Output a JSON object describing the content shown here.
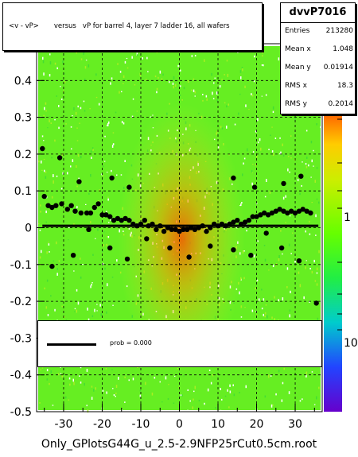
{
  "chart_data": {
    "type": "scatter",
    "title": "<v - vP>       versus   vP for barrel 4, layer 7 ladder 16, all wafers",
    "xlim": [
      -37,
      37
    ],
    "ylim": [
      -0.5,
      0.5
    ],
    "x_ticks": [
      -30,
      -20,
      -10,
      0,
      10,
      20,
      30
    ],
    "y_ticks": [
      -0.5,
      -0.4,
      -0.3,
      -0.2,
      -0.1,
      0,
      0.1,
      0.2,
      0.3,
      0.4
    ],
    "z_ticks": [
      {
        "value": 1,
        "label": "1"
      },
      {
        "value": 10,
        "label": "10"
      }
    ],
    "grid": true,
    "background_density": "2D histogram, green low density, orange/red high density near center",
    "profile_points": [
      {
        "x": -35.5,
        "y": 0.215
      },
      {
        "x": -35.0,
        "y": 0.085
      },
      {
        "x": -34.0,
        "y": 0.06
      },
      {
        "x": -33.0,
        "y": 0.055
      },
      {
        "x": -32.0,
        "y": 0.06
      },
      {
        "x": -31.0,
        "y": 0.19
      },
      {
        "x": -30.5,
        "y": 0.065
      },
      {
        "x": -29.0,
        "y": 0.05
      },
      {
        "x": -28.0,
        "y": 0.06
      },
      {
        "x": -27.0,
        "y": 0.045
      },
      {
        "x": -26.0,
        "y": 0.125
      },
      {
        "x": -25.5,
        "y": 0.04
      },
      {
        "x": -24.0,
        "y": 0.04
      },
      {
        "x": -23.0,
        "y": 0.04
      },
      {
        "x": -22.0,
        "y": 0.055
      },
      {
        "x": -21.0,
        "y": 0.065
      },
      {
        "x": -20.0,
        "y": 0.035
      },
      {
        "x": -19.0,
        "y": 0.035
      },
      {
        "x": -18.0,
        "y": 0.03
      },
      {
        "x": -17.0,
        "y": 0.02
      },
      {
        "x": -16.0,
        "y": 0.025
      },
      {
        "x": -15.0,
        "y": 0.02
      },
      {
        "x": -14.0,
        "y": 0.025
      },
      {
        "x": -13.0,
        "y": 0.02
      },
      {
        "x": -12.0,
        "y": 0.01
      },
      {
        "x": -11.0,
        "y": 0.005
      },
      {
        "x": -10.0,
        "y": 0.01
      },
      {
        "x": -9.0,
        "y": 0.02
      },
      {
        "x": -8.0,
        "y": 0.005
      },
      {
        "x": -7.0,
        "y": 0.01
      },
      {
        "x": -6.0,
        "y": -0.005
      },
      {
        "x": -5.0,
        "y": 0.005
      },
      {
        "x": -4.0,
        "y": -0.01
      },
      {
        "x": -3.0,
        "y": 0.0
      },
      {
        "x": -2.0,
        "y": -0.005
      },
      {
        "x": -1.0,
        "y": -0.005
      },
      {
        "x": 0.0,
        "y": -0.01
      },
      {
        "x": 1.0,
        "y": -0.005
      },
      {
        "x": 2.0,
        "y": -0.005
      },
      {
        "x": 3.0,
        "y": 0.0
      },
      {
        "x": 4.0,
        "y": -0.005
      },
      {
        "x": 5.0,
        "y": 0.0
      },
      {
        "x": 6.0,
        "y": 0.005
      },
      {
        "x": 7.0,
        "y": -0.01
      },
      {
        "x": 8.0,
        "y": 0.0
      },
      {
        "x": 9.0,
        "y": 0.01
      },
      {
        "x": 10.0,
        "y": 0.005
      },
      {
        "x": 11.0,
        "y": 0.01
      },
      {
        "x": 12.0,
        "y": 0.005
      },
      {
        "x": 13.0,
        "y": 0.01
      },
      {
        "x": 14.0,
        "y": 0.015
      },
      {
        "x": 15.0,
        "y": 0.02
      },
      {
        "x": 16.0,
        "y": 0.01
      },
      {
        "x": 17.0,
        "y": 0.015
      },
      {
        "x": 18.0,
        "y": 0.02
      },
      {
        "x": 19.0,
        "y": 0.03
      },
      {
        "x": 20.0,
        "y": 0.03
      },
      {
        "x": 21.0,
        "y": 0.035
      },
      {
        "x": 22.0,
        "y": 0.04
      },
      {
        "x": 23.0,
        "y": 0.035
      },
      {
        "x": 24.0,
        "y": 0.04
      },
      {
        "x": 25.0,
        "y": 0.045
      },
      {
        "x": 26.0,
        "y": 0.05
      },
      {
        "x": 27.0,
        "y": 0.045
      },
      {
        "x": 28.0,
        "y": 0.04
      },
      {
        "x": 29.0,
        "y": 0.045
      },
      {
        "x": 30.0,
        "y": 0.04
      },
      {
        "x": 31.0,
        "y": 0.045
      },
      {
        "x": 32.0,
        "y": 0.05
      },
      {
        "x": 33.0,
        "y": 0.045
      },
      {
        "x": 34.0,
        "y": 0.04
      },
      {
        "x": -33.0,
        "y": -0.105
      },
      {
        "x": -27.5,
        "y": -0.075
      },
      {
        "x": -23.5,
        "y": -0.005
      },
      {
        "x": -18.0,
        "y": -0.055
      },
      {
        "x": -13.5,
        "y": -0.085
      },
      {
        "x": -8.5,
        "y": -0.03
      },
      {
        "x": -2.5,
        "y": -0.055
      },
      {
        "x": 2.5,
        "y": -0.08
      },
      {
        "x": 8.0,
        "y": -0.05
      },
      {
        "x": 14.0,
        "y": -0.06
      },
      {
        "x": 18.5,
        "y": -0.075
      },
      {
        "x": 22.5,
        "y": -0.015
      },
      {
        "x": 26.5,
        "y": -0.055
      },
      {
        "x": 31.0,
        "y": -0.09
      },
      {
        "x": -17.5,
        "y": 0.135
      },
      {
        "x": -13.0,
        "y": 0.11
      },
      {
        "x": 14.0,
        "y": 0.135
      },
      {
        "x": 19.5,
        "y": 0.11
      },
      {
        "x": 27.0,
        "y": 0.12
      },
      {
        "x": 31.5,
        "y": 0.14
      },
      {
        "x": 35.5,
        "y": -0.205
      }
    ],
    "fit_line": {
      "y": 0.005
    }
  },
  "title_box": {
    "text": "<v - vP>       versus   vP for barrel 4, layer 7 ladder 16, all wafers"
  },
  "stats": {
    "name": "dvvP7016",
    "rows": [
      {
        "key": "Entries",
        "value": "213280"
      },
      {
        "key": "Mean x",
        "value": "1.048"
      },
      {
        "key": "Mean y",
        "value": "0.01914"
      },
      {
        "key": "RMS x",
        "value": "18.3"
      },
      {
        "key": "RMS y",
        "value": "0.2014"
      }
    ]
  },
  "fit_legend": {
    "label": "prob = 0.000"
  },
  "file_label": "Only_GPlotsG44G_u_2.5-2.9NFP25rCut0.5cm.root",
  "colors": {
    "low": "#66ee22",
    "mid": "#ccee22",
    "high": "#ff6600",
    "palette_top": "#ff9900",
    "palette_mid": "#33ff00",
    "palette_bottom": "#6600cc"
  }
}
